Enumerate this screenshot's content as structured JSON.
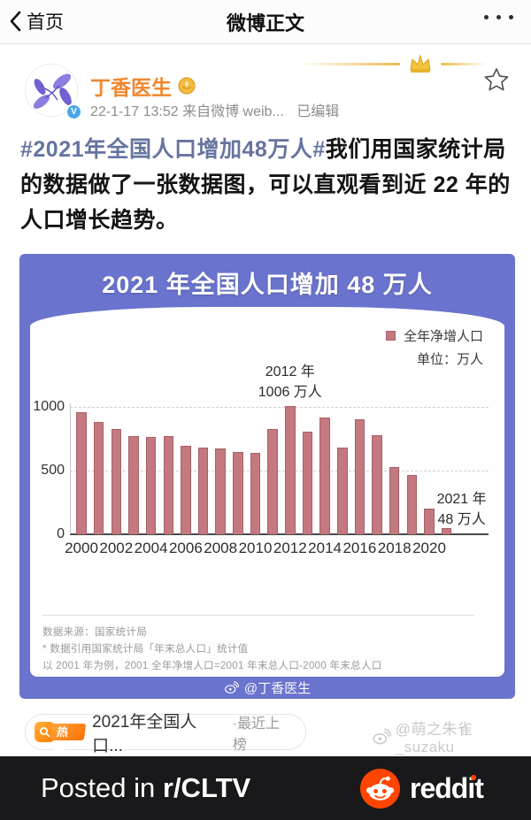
{
  "nav": {
    "back_label": "首页",
    "title": "微博正文"
  },
  "post": {
    "author": "丁香医生",
    "timestamp": "22-1-17 13:52",
    "source": "来自微博 weib...",
    "edited_label": "已编辑",
    "hashtag": "#2021年全国人口增加48万人#",
    "body": "我们用国家统计局的数据做了一张数据图，可以直观看到近 22 年的人口增长趋势。"
  },
  "chart_data": {
    "type": "bar",
    "title": "2021 年全国人口增加 48 万人",
    "legend": "全年净增人口",
    "unit_label": "单位：万人",
    "categories": [
      2000,
      2001,
      2002,
      2003,
      2004,
      2005,
      2006,
      2007,
      2008,
      2009,
      2010,
      2011,
      2012,
      2013,
      2014,
      2015,
      2016,
      2017,
      2018,
      2019,
      2020,
      2021
    ],
    "values": [
      957,
      884,
      826,
      774,
      761,
      768,
      692,
      681,
      673,
      648,
      641,
      825,
      1006,
      804,
      920,
      680,
      906,
      779,
      530,
      467,
      204,
      48
    ],
    "x_tick_labels": [
      "2000",
      "2002",
      "2004",
      "2006",
      "2008",
      "2010",
      "2012",
      "2014",
      "2016",
      "2018",
      "2020"
    ],
    "yticks": [
      0,
      500,
      1000
    ],
    "ylim": [
      0,
      1100
    ],
    "grid": "dashed horizontal",
    "legend_position": "top-right",
    "bar_color": "#c3797f",
    "annotations": [
      {
        "year": 2012,
        "label": "2012 年",
        "value_label": "1006 万人"
      },
      {
        "year": 2021,
        "label": "2021 年",
        "value_label": "48 万人"
      }
    ],
    "source_note": "数据来源：国家统计局",
    "footnote_1": "* 数据引用国家统计局「年末总人口」统计值",
    "footnote_2": "以 2001 年为例，2001 全年净增人口=2001 年末总人口-2000 年末总人口",
    "watermark": "@丁香医生"
  },
  "hot_search": {
    "badge": "热搜",
    "topic": "2021年全国人口...",
    "status": "·最近上榜"
  },
  "watermark": "@萌之朱雀_suzaku",
  "footer": {
    "posted_prefix": "Posted in ",
    "subreddit": "r/CLTV",
    "brand": "reddit"
  },
  "colors": {
    "accent_blue": "#6a73cd",
    "bar": "#c3797f",
    "reddit_orange": "#ff4500",
    "name_orange": "#f0872e"
  }
}
